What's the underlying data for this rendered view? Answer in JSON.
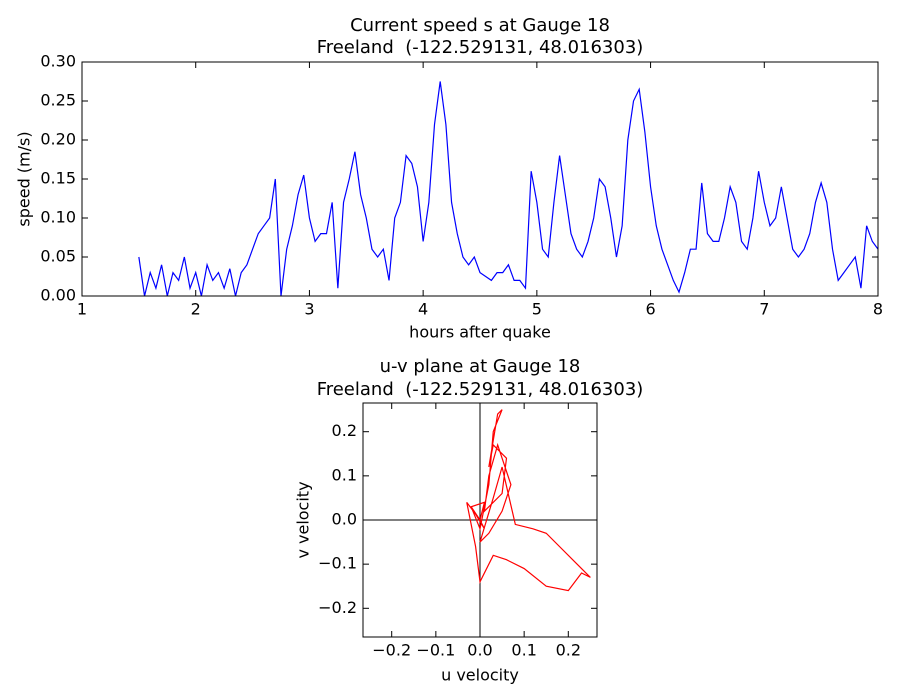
{
  "chart_data": [
    {
      "type": "line",
      "title": "Current speed s at Gauge 18",
      "subtitle": "Freeland  (-122.529131, 48.016303)",
      "xlabel": "hours after quake",
      "ylabel": "speed (m/s)",
      "color": "#0000ff",
      "xlim": [
        1,
        8
      ],
      "ylim": [
        0,
        0.3
      ],
      "xticks": [
        1,
        2,
        3,
        4,
        5,
        6,
        7,
        8
      ],
      "yticks": [
        {
          "value": 0,
          "label": "0.00"
        },
        0.05,
        {
          "value": 0.1,
          "label": "0.10"
        },
        0.15,
        {
          "value": 0.2,
          "label": "0.20"
        },
        0.25,
        {
          "value": 0.3,
          "label": "0.30"
        }
      ],
      "x": [
        1.5,
        1.55,
        1.6,
        1.65,
        1.7,
        1.75,
        1.8,
        1.85,
        1.9,
        1.95,
        2.0,
        2.05,
        2.1,
        2.15,
        2.2,
        2.25,
        2.3,
        2.35,
        2.4,
        2.45,
        2.5,
        2.55,
        2.6,
        2.65,
        2.7,
        2.75,
        2.8,
        2.85,
        2.9,
        2.95,
        3.0,
        3.05,
        3.1,
        3.15,
        3.2,
        3.25,
        3.3,
        3.35,
        3.4,
        3.45,
        3.5,
        3.55,
        3.6,
        3.65,
        3.7,
        3.75,
        3.8,
        3.85,
        3.9,
        3.95,
        4.0,
        4.05,
        4.1,
        4.15,
        4.2,
        4.25,
        4.3,
        4.35,
        4.4,
        4.45,
        4.5,
        4.55,
        4.6,
        4.65,
        4.7,
        4.75,
        4.8,
        4.85,
        4.9,
        4.95,
        5.0,
        5.05,
        5.1,
        5.15,
        5.2,
        5.25,
        5.3,
        5.35,
        5.4,
        5.45,
        5.5,
        5.55,
        5.6,
        5.65,
        5.7,
        5.75,
        5.8,
        5.85,
        5.9,
        5.95,
        6.0,
        6.05,
        6.1,
        6.15,
        6.2,
        6.25,
        6.3,
        6.35,
        6.4,
        6.45,
        6.5,
        6.55,
        6.6,
        6.65,
        6.7,
        6.75,
        6.8,
        6.85,
        6.9,
        6.95,
        7.0,
        7.05,
        7.1,
        7.15,
        7.2,
        7.25,
        7.3,
        7.35,
        7.4,
        7.45,
        7.5,
        7.55,
        7.6,
        7.65,
        7.7,
        7.75,
        7.8,
        7.85,
        7.9,
        7.95,
        8.0
      ],
      "values": [
        0.05,
        0.0,
        0.03,
        0.01,
        0.04,
        0.0,
        0.03,
        0.02,
        0.05,
        0.01,
        0.03,
        0.0,
        0.04,
        0.02,
        0.03,
        0.01,
        0.035,
        0.0,
        0.03,
        0.04,
        0.06,
        0.08,
        0.09,
        0.1,
        0.15,
        0.0,
        0.06,
        0.09,
        0.13,
        0.155,
        0.1,
        0.07,
        0.08,
        0.08,
        0.12,
        0.01,
        0.12,
        0.15,
        0.185,
        0.13,
        0.1,
        0.06,
        0.05,
        0.06,
        0.02,
        0.1,
        0.12,
        0.18,
        0.17,
        0.14,
        0.07,
        0.12,
        0.22,
        0.275,
        0.22,
        0.12,
        0.08,
        0.05,
        0.04,
        0.05,
        0.03,
        0.025,
        0.02,
        0.03,
        0.03,
        0.04,
        0.02,
        0.02,
        0.01,
        0.16,
        0.12,
        0.06,
        0.05,
        0.12,
        0.18,
        0.13,
        0.08,
        0.06,
        0.05,
        0.07,
        0.1,
        0.15,
        0.14,
        0.1,
        0.05,
        0.09,
        0.2,
        0.25,
        0.265,
        0.21,
        0.14,
        0.09,
        0.06,
        0.04,
        0.02,
        0.005,
        0.03,
        0.06,
        0.06,
        0.145,
        0.08,
        0.07,
        0.07,
        0.1,
        0.14,
        0.12,
        0.07,
        0.06,
        0.1,
        0.16,
        0.12,
        0.09,
        0.1,
        0.14,
        0.1,
        0.06,
        0.05,
        0.06,
        0.08,
        0.12,
        0.145,
        0.12,
        0.06,
        0.02,
        0.03,
        0.04,
        0.05,
        0.01,
        0.09,
        0.07,
        0.06
      ]
    },
    {
      "type": "line",
      "title": "u-v plane at Gauge 18",
      "subtitle": "Freeland  (-122.529131, 48.016303)",
      "xlabel": "u velocity",
      "ylabel": "v velocity",
      "color": "#ff0000",
      "reference_lines": {
        "x": 0,
        "y": 0
      },
      "xlim": [
        -0.265,
        0.265
      ],
      "ylim": [
        -0.265,
        0.265
      ],
      "xticks": [
        {
          "value": -0.2,
          "label": "−0.2"
        },
        {
          "value": -0.1,
          "label": "−0.1"
        },
        {
          "value": 0,
          "label": "0.0"
        },
        0.1,
        0.2
      ],
      "yticks": [
        {
          "value": -0.2,
          "label": "−0.2"
        },
        {
          "value": -0.1,
          "label": "−0.1"
        },
        {
          "value": 0,
          "label": "0.0"
        },
        0.1,
        0.2
      ],
      "x": [
        0,
        0.01,
        -0.02,
        0.0,
        0.02,
        0.03,
        0.05,
        0.04,
        0.02,
        0.03,
        0.06,
        0.05,
        0.01,
        0.02,
        0.04,
        0.07,
        0.05,
        0.02,
        0.0,
        0.03,
        0.05,
        0.08,
        0.12,
        0.15,
        0.18,
        0.22,
        0.25,
        0.23,
        0.2,
        0.15,
        0.1,
        0.06,
        0.03,
        0.0,
        -0.01,
        -0.03,
        0.0,
        -0.02,
        0.01,
        0
      ],
      "values": [
        0,
        0.04,
        0.03,
        -0.02,
        0.08,
        0.2,
        0.25,
        0.24,
        0.12,
        0.17,
        0.14,
        0.06,
        0.02,
        0.1,
        0.17,
        0.08,
        0.02,
        -0.03,
        -0.05,
        0.05,
        0.12,
        -0.01,
        -0.02,
        -0.03,
        -0.06,
        -0.1,
        -0.13,
        -0.12,
        -0.16,
        -0.15,
        -0.11,
        -0.09,
        -0.08,
        -0.14,
        -0.06,
        0.04,
        0.0,
        0.03,
        -0.02,
        0
      ]
    }
  ]
}
